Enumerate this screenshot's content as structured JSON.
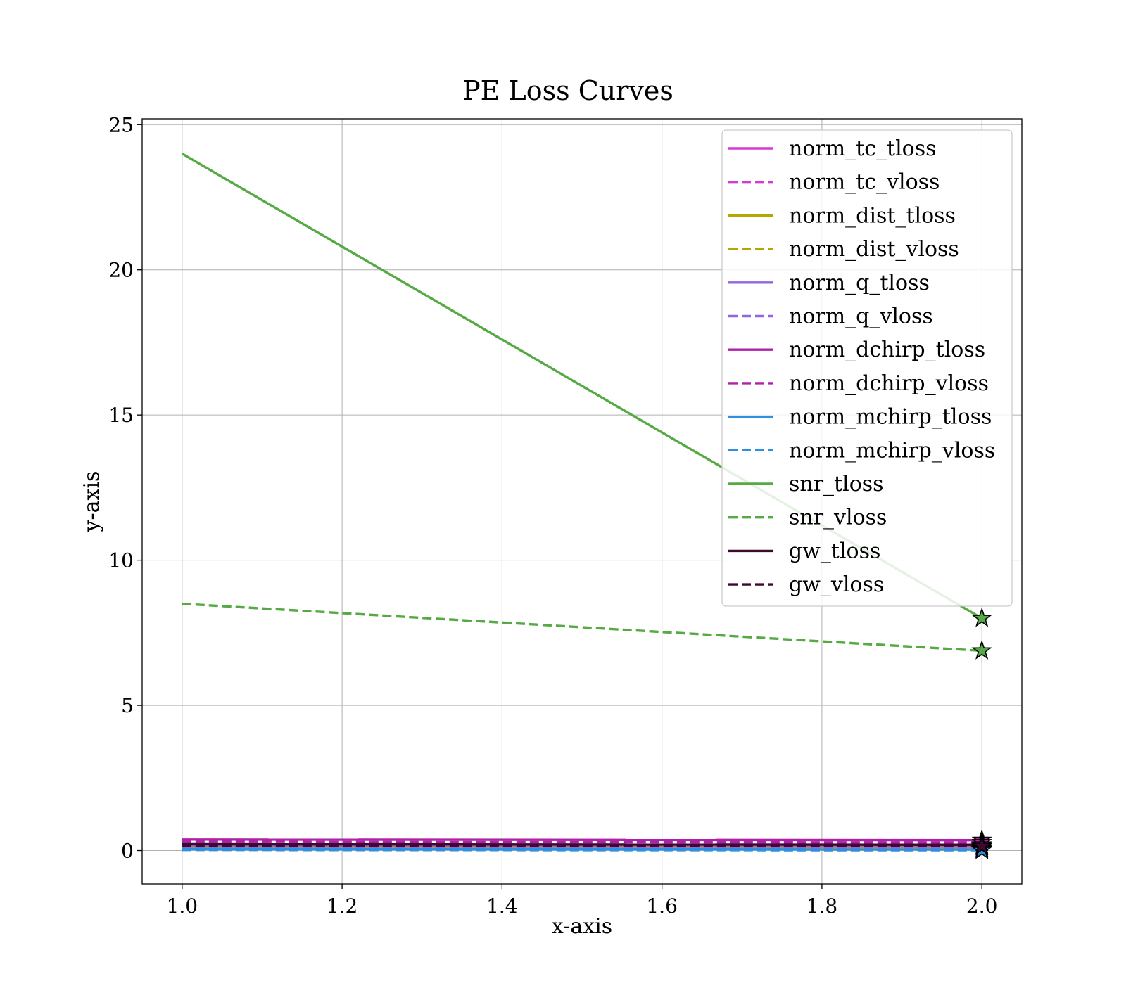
{
  "chart_data": {
    "type": "line",
    "title": "PE Loss Curves",
    "xlabel": "x-axis",
    "ylabel": "y-axis",
    "xlim": [
      0.95,
      2.05
    ],
    "ylim": [
      -1.15,
      25.2
    ],
    "xticks": [
      "1.0",
      "1.2",
      "1.4",
      "1.6",
      "1.8",
      "2.0"
    ],
    "yticks": [
      "0",
      "5",
      "10",
      "15",
      "20",
      "25"
    ],
    "xtick_values": [
      1.0,
      1.2,
      1.4,
      1.6,
      1.8,
      2.0
    ],
    "ytick_values": [
      0,
      5,
      10,
      15,
      20,
      25
    ],
    "grid": true,
    "legend_position": "top-right",
    "end_marker": "star",
    "x": [
      1.0,
      2.0
    ],
    "series": [
      {
        "name": "norm_tc_tloss",
        "color": "#d63ad6",
        "style": "solid",
        "values": [
          0.2,
          0.18
        ]
      },
      {
        "name": "norm_tc_vloss",
        "color": "#d63ad6",
        "style": "dashed",
        "values": [
          0.12,
          0.1
        ]
      },
      {
        "name": "norm_dist_tloss",
        "color": "#b5a600",
        "style": "solid",
        "values": [
          0.1,
          0.08
        ]
      },
      {
        "name": "norm_dist_vloss",
        "color": "#b5a600",
        "style": "dashed",
        "values": [
          0.06,
          0.04
        ]
      },
      {
        "name": "norm_q_tloss",
        "color": "#9366e0",
        "style": "solid",
        "values": [
          0.15,
          0.14
        ]
      },
      {
        "name": "norm_q_vloss",
        "color": "#9366e0",
        "style": "dashed",
        "values": [
          0.08,
          0.07
        ]
      },
      {
        "name": "norm_dchirp_tloss",
        "color": "#b020a8",
        "style": "solid",
        "values": [
          0.38,
          0.36
        ]
      },
      {
        "name": "norm_dchirp_vloss",
        "color": "#b020a8",
        "style": "dashed",
        "values": [
          0.3,
          0.28
        ]
      },
      {
        "name": "norm_mchirp_tloss",
        "color": "#2f8fe0",
        "style": "solid",
        "values": [
          0.05,
          0.04
        ]
      },
      {
        "name": "norm_mchirp_vloss",
        "color": "#2f8fe0",
        "style": "dashed",
        "values": [
          0.02,
          0.01
        ]
      },
      {
        "name": "snr_tloss",
        "color": "#55aa44",
        "style": "solid",
        "values": [
          24.0,
          8.0
        ]
      },
      {
        "name": "snr_vloss",
        "color": "#55aa44",
        "style": "dashed",
        "values": [
          8.5,
          6.88
        ]
      },
      {
        "name": "gw_tloss",
        "color": "#3d0a2e",
        "style": "solid",
        "values": [
          0.22,
          0.2
        ]
      },
      {
        "name": "gw_vloss",
        "color": "#3d0a2e",
        "style": "dashed",
        "values": [
          0.16,
          0.15
        ]
      }
    ]
  }
}
